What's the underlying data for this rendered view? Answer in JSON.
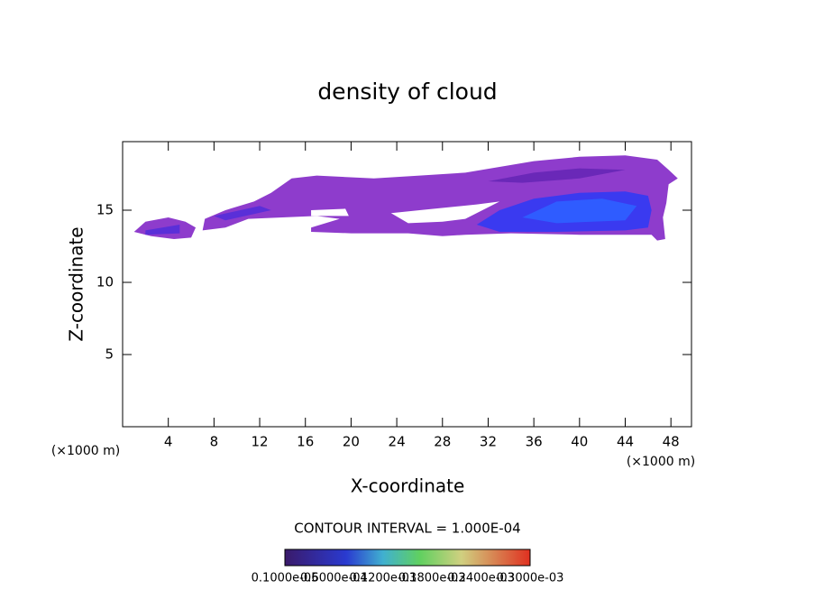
{
  "chart_data": {
    "type": "contour",
    "title": "density of cloud",
    "x_label": "X-coordinate",
    "y_label": "Z-coordinate",
    "x_unit_label": "(×1000 m)",
    "x_unit_label_right": "(×1000 m)",
    "contour_interval": "CONTOUR INTERVAL = 1.000E-04",
    "xlim": [
      0,
      49.8
    ],
    "ylim": [
      0,
      19.75
    ],
    "xticks": [
      4,
      8,
      12,
      16,
      20,
      24,
      28,
      32,
      36,
      40,
      44,
      48
    ],
    "yticks": [
      5,
      10,
      15
    ],
    "colorbar_labels": [
      "0.1000e-05",
      "0.6000e-04",
      "0.1200e-03",
      "0.1800e-03",
      "0.2400e-03",
      "0.3000e-03"
    ],
    "regions": [
      {
        "color": "#8e3ccc",
        "x": [
          1.0,
          2,
          4,
          5.5,
          6.4,
          6,
          4.5,
          2.5
        ],
        "z": [
          13.5,
          14.2,
          14.5,
          14.2,
          13.8,
          13.1,
          13.0,
          13.2
        ]
      },
      {
        "color": "#8e3ccc",
        "x": [
          7,
          7.2,
          9,
          11.5,
          13,
          14.8,
          17,
          22,
          26,
          30,
          33,
          36,
          40,
          44,
          46.8,
          47.8,
          48.6,
          47.8,
          47.6,
          47.3,
          47.5,
          46.8,
          46.3,
          40,
          34,
          30,
          28,
          25,
          20,
          16.5,
          16.5,
          19,
          17,
          14,
          11,
          9
        ],
        "z": [
          13.6,
          14.4,
          15.0,
          15.6,
          16.2,
          17.2,
          17.4,
          17.2,
          17.4,
          17.6,
          18.0,
          18.4,
          18.7,
          18.8,
          18.5,
          17.8,
          17.2,
          16.8,
          15.5,
          14.5,
          13.0,
          12.9,
          13.3,
          13.3,
          13.4,
          13.3,
          13.2,
          13.4,
          13.4,
          13.5,
          13.8,
          14.4,
          14.6,
          14.5,
          14.4,
          13.8
        ]
      },
      {
        "color": "#ffffff",
        "x": [
          16.5,
          19.5,
          19.8,
          16.5
        ],
        "z": [
          15.0,
          15.1,
          14.6,
          14.6
        ]
      },
      {
        "color": "#ffffff",
        "x": [
          23.5,
          26,
          31,
          33,
          30,
          28,
          25
        ],
        "z": [
          14.8,
          15.0,
          15.4,
          15.6,
          14.4,
          14.2,
          14.1
        ]
      },
      {
        "color": "#6a28b8",
        "x": [
          32,
          36,
          40,
          44,
          40,
          35
        ],
        "z": [
          17.0,
          17.6,
          17.9,
          17.8,
          17.2,
          16.9
        ]
      },
      {
        "color": "#5a2fd8",
        "x": [
          2,
          5,
          5,
          2
        ],
        "z": [
          13.6,
          14.0,
          13.4,
          13.3
        ]
      },
      {
        "color": "#5a2fd8",
        "x": [
          8,
          12,
          13,
          9
        ],
        "z": [
          14.6,
          15.3,
          15.0,
          14.3
        ]
      },
      {
        "color": "#3a3af0",
        "x": [
          31,
          33,
          36,
          40,
          44,
          46,
          46.3,
          46,
          44,
          38,
          33
        ],
        "z": [
          14.0,
          15.0,
          15.8,
          16.2,
          16.3,
          16.0,
          15,
          13.8,
          13.6,
          13.5,
          13.5
        ]
      },
      {
        "color": "#2f5cff",
        "x": [
          35,
          38,
          42,
          45,
          44,
          38
        ],
        "z": [
          14.5,
          15.6,
          15.8,
          15.3,
          14.3,
          14.1
        ]
      }
    ]
  }
}
